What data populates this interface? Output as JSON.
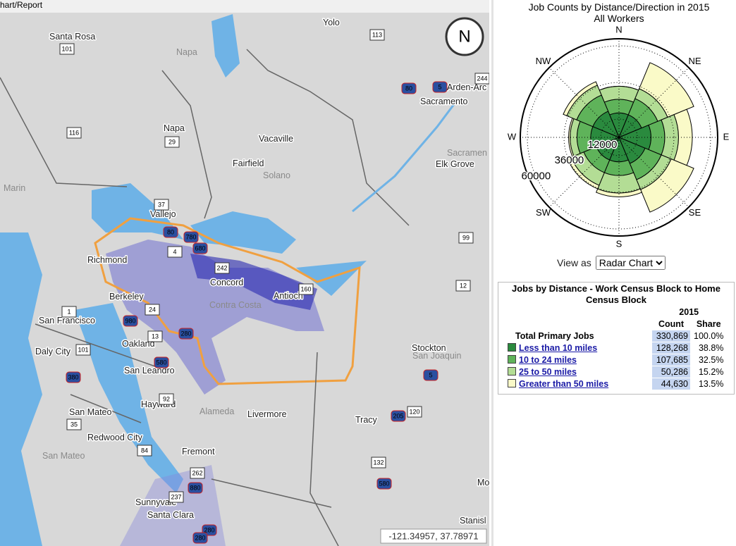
{
  "toolbar": {
    "title": "hart/Report"
  },
  "map": {
    "compass": "N",
    "coordinates": "-121.34957, 37.78971",
    "labels": [
      "Santa Rosa",
      "Yolo",
      "Napa",
      "Napa",
      "Vacaville",
      "Sacramento",
      "Arden-Arc",
      "Fairfield",
      "Solano",
      "Marin",
      "Vallejo",
      "Richmond",
      "Concord",
      "Contra Costa",
      "Antioch",
      "Berkeley",
      "San Francisco",
      "Oakland",
      "Daly City",
      "San Leandro",
      "Stockton",
      "San Joaquin",
      "Hayward",
      "Alameda",
      "Livermore",
      "San Mateo",
      "Redwood City",
      "San Mateo",
      "Fremont",
      "Tracy",
      "Sunnyvale",
      "Santa Clara",
      "Elk Grove",
      "Sacramen",
      "Stanisl",
      "Mo"
    ],
    "shields": [
      "101",
      "113",
      "80",
      "5",
      "244",
      "116",
      "29",
      "37",
      "80",
      "780",
      "680",
      "4",
      "242",
      "160",
      "99",
      "12",
      "1",
      "24",
      "980",
      "280",
      "101",
      "13",
      "580",
      "380",
      "92",
      "35",
      "84",
      "262",
      "880",
      "237",
      "280",
      "580",
      "132",
      "205",
      "120",
      "5",
      "580",
      "280"
    ]
  },
  "chart_data": {
    "type": "polar-bar",
    "title": "Job Counts by Distance/Direction in 2015",
    "subtitle": "All Workers",
    "categories": [
      "N",
      "NE",
      "E",
      "SE",
      "S",
      "SW",
      "W",
      "NW"
    ],
    "series": [
      {
        "color": "#2a8a3e",
        "values": [
          16000,
          16000,
          21000,
          18500,
          16000,
          16000,
          18500,
          18500
        ]
      },
      {
        "color": "#5fb35a",
        "values": [
          9000,
          11500,
          9000,
          11500,
          9000,
          9000,
          9000,
          11500
        ]
      },
      {
        "color": "#b3dd95",
        "values": [
          8500,
          7000,
          9000,
          7000,
          11500,
          9000,
          4500,
          7000
        ]
      },
      {
        "color": "#fafac8",
        "values": [
          0,
          18500,
          9000,
          16000,
          2500,
          2500,
          1000,
          2500
        ]
      }
    ],
    "ylim": [
      0,
      60000
    ],
    "yticks": [
      12000,
      36000,
      60000
    ]
  },
  "view_as": {
    "label": "View as",
    "selected": "Radar Chart"
  },
  "table": {
    "title": "Jobs by Distance - Work Census Block to Home Census Block",
    "year": "2015",
    "columns": [
      "Count",
      "Share"
    ],
    "total": {
      "label": "Total Primary Jobs",
      "count": "330,869",
      "share": "100.0%"
    },
    "rows": [
      {
        "label": "Less than 10 miles",
        "color": "#2a8a3e",
        "count": "128,268",
        "share": "38.8%"
      },
      {
        "label": "10 to 24 miles",
        "color": "#5fb35a",
        "count": "107,685",
        "share": "32.5%"
      },
      {
        "label": "25 to 50 miles",
        "color": "#b3dd95",
        "count": "50,286",
        "share": "15.2%"
      },
      {
        "label": "Greater than 50 miles",
        "color": "#fafac8",
        "count": "44,630",
        "share": "13.5%"
      }
    ]
  }
}
